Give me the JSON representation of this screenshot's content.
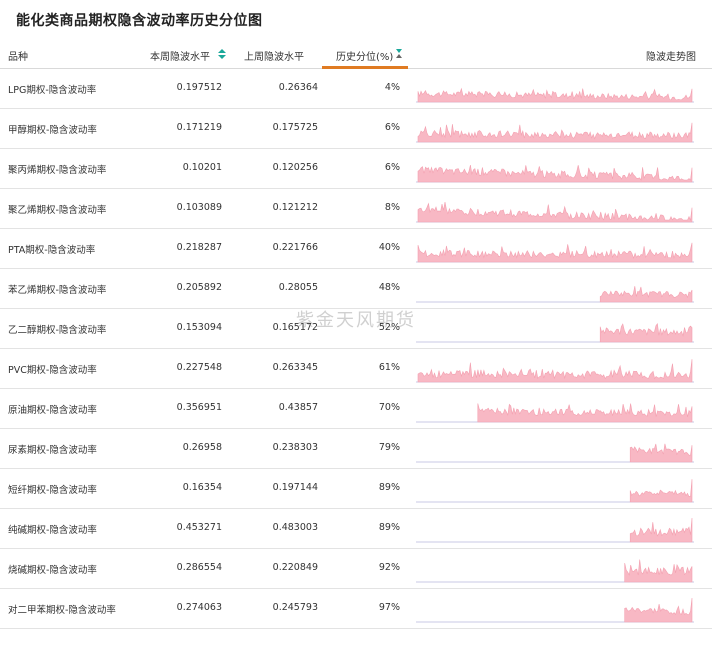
{
  "title": "能化类商品期权隐含波动率历史分位图",
  "columns": {
    "name": "品种",
    "current": "本周隐波水平",
    "last": "上周隐波水平",
    "percentile": "历史分位(%)",
    "trend": "隐波走势图"
  },
  "watermark": "紫金天风期货",
  "colors": {
    "spark_fill": "#f8b8c4",
    "spark_line": "#f3a0b0",
    "spark_axis": "#c8c8e6",
    "sort_icon": "#1aa89a",
    "active_underline": "#e07b22"
  },
  "chart_data": {
    "type": "table",
    "rows": [
      {
        "name": "LPG期权-隐含波动率",
        "current": "0.197512",
        "last": "0.26364",
        "percentile": "4%",
        "spark_start": 0.0,
        "spark_level": 0.35,
        "spark_noise": 0.25,
        "spark_trend": -0.15,
        "spark_end_spike": 0.2
      },
      {
        "name": "甲醇期权-隐含波动率",
        "current": "0.171219",
        "last": "0.175725",
        "percentile": "6%",
        "spark_start": 0.0,
        "spark_level": 0.35,
        "spark_noise": 0.3,
        "spark_trend": -0.1,
        "spark_end_spike": 0.45
      },
      {
        "name": "聚丙烯期权-隐含波动率",
        "current": "0.10201",
        "last": "0.120256",
        "percentile": "6%",
        "spark_start": 0.0,
        "spark_level": 0.5,
        "spark_noise": 0.3,
        "spark_trend": -0.35,
        "spark_end_spike": 0.1
      },
      {
        "name": "聚乙烯期权-隐含波动率",
        "current": "0.103089",
        "last": "0.121212",
        "percentile": "8%",
        "spark_start": 0.0,
        "spark_level": 0.5,
        "spark_noise": 0.3,
        "spark_trend": -0.4,
        "spark_end_spike": 0.1
      },
      {
        "name": "PTA期权-隐含波动率",
        "current": "0.218287",
        "last": "0.221766",
        "percentile": "40%",
        "spark_start": 0.0,
        "spark_level": 0.35,
        "spark_noise": 0.3,
        "spark_trend": -0.05,
        "spark_end_spike": 0.45
      },
      {
        "name": "苯乙烯期权-隐含波动率",
        "current": "0.205892",
        "last": "0.28055",
        "percentile": "48%",
        "spark_start": 0.67,
        "spark_level": 0.35,
        "spark_noise": 0.25,
        "spark_trend": -0.05,
        "spark_end_spike": 0.15
      },
      {
        "name": "乙二醇期权-隐含波动率",
        "current": "0.153094",
        "last": "0.165172",
        "percentile": "52%",
        "spark_start": 0.67,
        "spark_level": 0.45,
        "spark_noise": 0.3,
        "spark_trend": -0.05,
        "spark_end_spike": 0.15
      },
      {
        "name": "PVC期权-隐含波动率",
        "current": "0.227548",
        "last": "0.263345",
        "percentile": "61%",
        "spark_start": 0.0,
        "spark_level": 0.35,
        "spark_noise": 0.35,
        "spark_trend": -0.05,
        "spark_end_spike": 0.6
      },
      {
        "name": "原油期权-隐含波动率",
        "current": "0.356951",
        "last": "0.43857",
        "percentile": "70%",
        "spark_start": 0.22,
        "spark_level": 0.45,
        "spark_noise": 0.3,
        "spark_trend": -0.1,
        "spark_end_spike": 0.2
      },
      {
        "name": "尿素期权-隐含波动率",
        "current": "0.26958",
        "last": "0.238303",
        "percentile": "79%",
        "spark_start": 0.78,
        "spark_level": 0.5,
        "spark_noise": 0.25,
        "spark_trend": -0.1,
        "spark_end_spike": 0.2
      },
      {
        "name": "短纤期权-隐含波动率",
        "current": "0.16354",
        "last": "0.197144",
        "percentile": "89%",
        "spark_start": 0.78,
        "spark_level": 0.35,
        "spark_noise": 0.25,
        "spark_trend": 0.0,
        "spark_end_spike": 0.6
      },
      {
        "name": "纯碱期权-隐含波动率",
        "current": "0.453271",
        "last": "0.483003",
        "percentile": "89%",
        "spark_start": 0.78,
        "spark_level": 0.4,
        "spark_noise": 0.35,
        "spark_trend": 0.05,
        "spark_end_spike": 0.6
      },
      {
        "name": "烧碱期权-隐含波动率",
        "current": "0.286554",
        "last": "0.220849",
        "percentile": "92%",
        "spark_start": 0.76,
        "spark_level": 0.45,
        "spark_noise": 0.35,
        "spark_trend": 0.0,
        "spark_end_spike": 0.2
      },
      {
        "name": "对二甲苯期权-隐含波动率",
        "current": "0.274063",
        "last": "0.245793",
        "percentile": "97%",
        "spark_start": 0.76,
        "spark_level": 0.5,
        "spark_noise": 0.25,
        "spark_trend": -0.1,
        "spark_end_spike": 0.6
      }
    ]
  }
}
